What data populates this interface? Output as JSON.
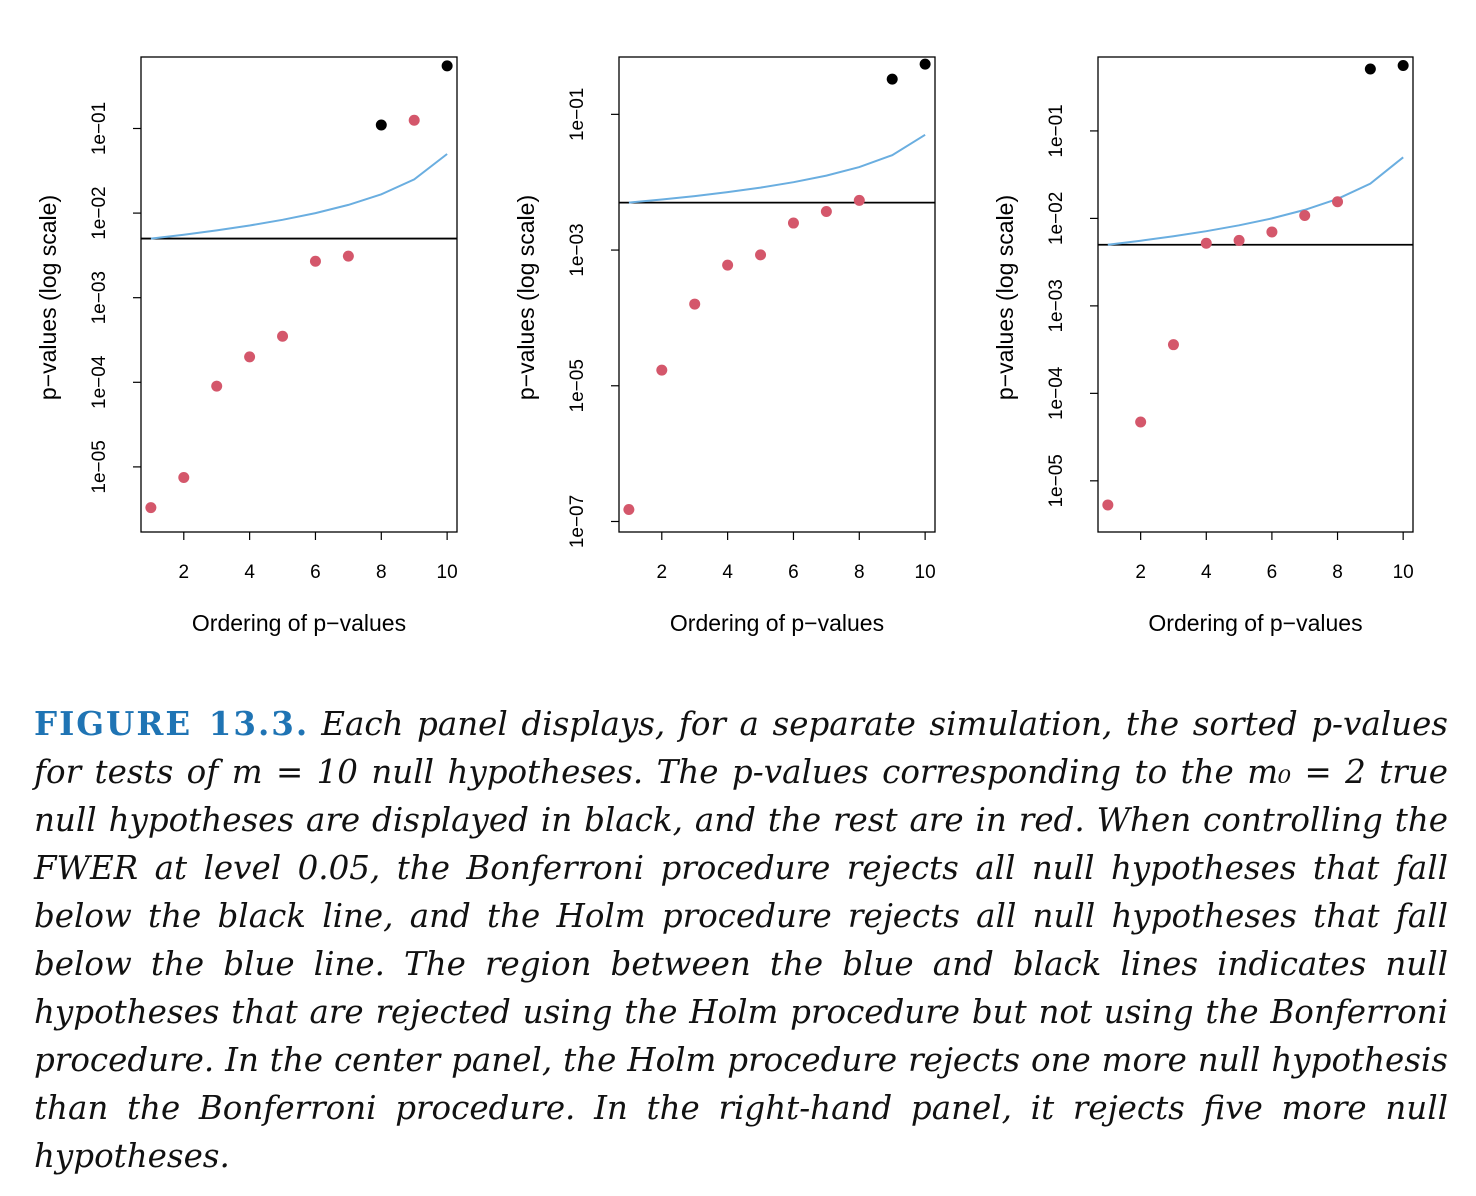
{
  "chart_data": [
    {
      "type": "scatter",
      "xlabel": "Ordering of p−values",
      "ylabel": "p−values (log scale)",
      "y_scale": "log",
      "x_ticks": [
        "2",
        "4",
        "6",
        "8",
        "10"
      ],
      "y_ticks": [
        "1e−05",
        "1e−04",
        "1e−03",
        "1e−02",
        "1e−01"
      ],
      "ylim": [
        1.7e-06,
        0.7
      ],
      "x": [
        1,
        2,
        3,
        4,
        5,
        6,
        7,
        8,
        9,
        10
      ],
      "y": [
        3.3e-06,
        7.5e-06,
        9e-05,
        0.0002,
        0.00035,
        0.0027,
        0.0031,
        0.11,
        0.125,
        0.55
      ],
      "point_type": [
        "false",
        "false",
        "false",
        "false",
        "false",
        "false",
        "false",
        "true",
        "false",
        "true"
      ],
      "bonferroni_line": 0.005,
      "holm_line": [
        0.005,
        0.00556,
        0.00625,
        0.00714,
        0.00833,
        0.01,
        0.0125,
        0.0167,
        0.025,
        0.05
      ]
    },
    {
      "type": "scatter",
      "xlabel": "Ordering of p−values",
      "ylabel": "p−values (log scale)",
      "y_scale": "log",
      "x_ticks": [
        "2",
        "4",
        "6",
        "8",
        "10"
      ],
      "y_ticks": [
        "1e−07",
        "1e−05",
        "1e−03",
        "1e−01"
      ],
      "ylim": [
        7e-08,
        0.7
      ],
      "x": [
        1,
        2,
        3,
        4,
        5,
        6,
        7,
        8,
        9,
        10
      ],
      "y": [
        1.5e-07,
        1.7e-05,
        0.00016,
        0.0006,
        0.00085,
        0.0025,
        0.0037,
        0.0054,
        0.33,
        0.55
      ],
      "point_type": [
        "false",
        "false",
        "false",
        "false",
        "false",
        "false",
        "false",
        "false",
        "true",
        "true"
      ],
      "bonferroni_line": 0.005,
      "holm_line": [
        0.005,
        0.00556,
        0.00625,
        0.00714,
        0.00833,
        0.01,
        0.0125,
        0.0167,
        0.025,
        0.05
      ]
    },
    {
      "type": "scatter",
      "xlabel": "Ordering of p−values",
      "ylabel": "p−values (log scale)",
      "y_scale": "log",
      "x_ticks": [
        "2",
        "4",
        "6",
        "8",
        "10"
      ],
      "y_ticks": [
        "1e−05",
        "1e−04",
        "1e−03",
        "1e−02",
        "1e−01"
      ],
      "ylim": [
        2.6e-06,
        0.7
      ],
      "x": [
        1,
        2,
        3,
        4,
        5,
        6,
        7,
        8,
        9,
        10
      ],
      "y": [
        5.3e-06,
        4.7e-05,
        0.00036,
        0.0052,
        0.0056,
        0.007,
        0.0108,
        0.0155,
        0.51,
        0.56
      ],
      "point_type": [
        "false",
        "false",
        "false",
        "false",
        "false",
        "false",
        "false",
        "false",
        "true",
        "true"
      ],
      "bonferroni_line": 0.005,
      "holm_line": [
        0.005,
        0.00556,
        0.00625,
        0.00714,
        0.00833,
        0.01,
        0.0125,
        0.0167,
        0.025,
        0.05
      ]
    }
  ],
  "colors": {
    "true_null": "#000000",
    "false_null": "#d4576b",
    "holm_line": "#6aaee0",
    "bonferroni_line": "#000000",
    "caption_lead": "#1f74b4"
  },
  "caption": {
    "label": "FIGURE 13.3.",
    "text": "Each panel displays, for a separate simulation, the sorted p-values for tests of m = 10 null hypotheses. The p-values corresponding to the m₀ = 2 true null hypotheses are displayed in black, and the rest are in red. When controlling the FWER at level 0.05, the Bonferroni procedure rejects all null hypotheses that fall below the black line, and the Holm procedure rejects all null hypotheses that fall below the blue line. The region between the blue and black lines indicates null hypotheses that are rejected using the Holm procedure but not using the Bonferroni procedure. In the center panel, the Holm procedure rejects one more null hypothesis than the Bonferroni procedure. In the right-hand panel, it rejects five more null hypotheses."
  }
}
